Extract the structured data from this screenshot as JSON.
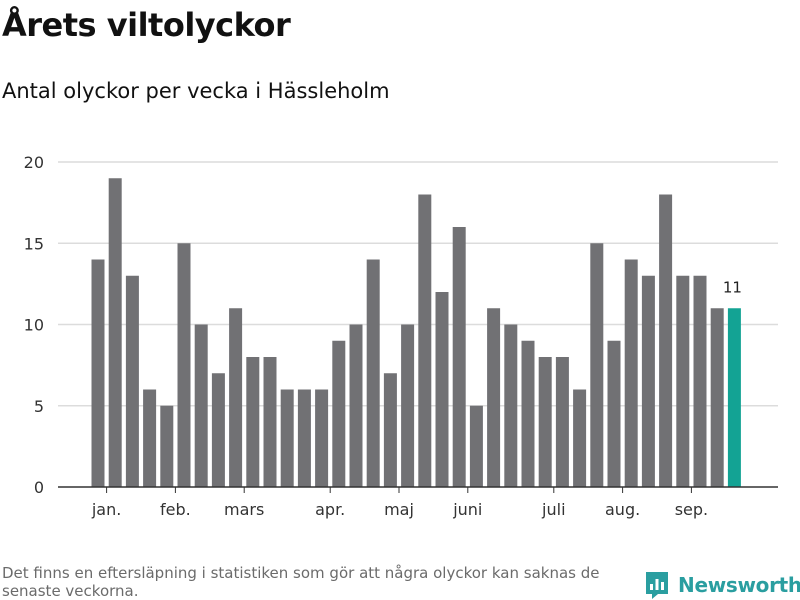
{
  "header": {
    "title": "Årets viltolyckor",
    "subtitle": "Antal olyckor per vecka i Hässleholm"
  },
  "chart_data": {
    "type": "bar",
    "title": "Årets viltolyckor",
    "subtitle": "Antal olyckor per vecka i Hässleholm",
    "xlabel": "",
    "ylabel": "",
    "ylim": [
      0,
      20
    ],
    "y_ticks": [
      0,
      5,
      10,
      15,
      20
    ],
    "grid": true,
    "values": [
      14,
      19,
      13,
      6,
      5,
      15,
      10,
      7,
      11,
      8,
      8,
      6,
      6,
      6,
      9,
      10,
      14,
      7,
      10,
      18,
      12,
      16,
      5,
      11,
      10,
      9,
      8,
      8,
      6,
      15,
      9,
      14,
      13,
      18,
      13,
      13,
      11,
      11
    ],
    "month_labels": [
      {
        "label": "jan.",
        "week_index": 0.5
      },
      {
        "label": "feb.",
        "week_index": 4.5
      },
      {
        "label": "mars",
        "week_index": 8.5
      },
      {
        "label": "apr.",
        "week_index": 13.5
      },
      {
        "label": "maj",
        "week_index": 17.5
      },
      {
        "label": "juni",
        "week_index": 21.5
      },
      {
        "label": "juli",
        "week_index": 26.5
      },
      {
        "label": "aug.",
        "week_index": 30.5
      },
      {
        "label": "sep.",
        "week_index": 34.5
      }
    ],
    "highlight_index": 37,
    "highlight_label": "11",
    "colors": {
      "bar": "#717174",
      "highlight": "#13a394",
      "grid": "#dcdcdc",
      "axis": "#333333"
    }
  },
  "footer": {
    "note": "Det finns en eftersläpning i statistiken som gör att några olyckor kan saknas de senaste veckorna.",
    "brand": "Newsworthy"
  }
}
